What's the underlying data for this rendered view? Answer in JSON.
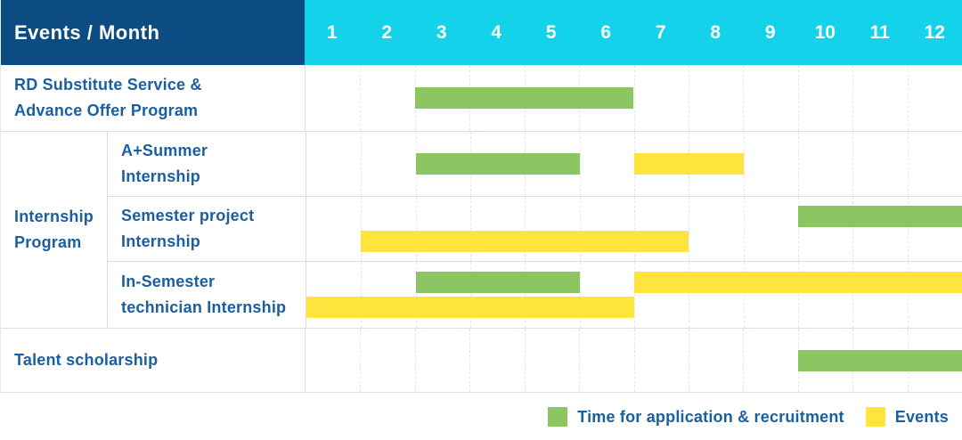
{
  "header": {
    "events_month_label": "Events / Month",
    "months": [
      "1",
      "2",
      "3",
      "4",
      "5",
      "6",
      "7",
      "8",
      "9",
      "10",
      "11",
      "12"
    ]
  },
  "colors": {
    "navy": "#0C4C82",
    "cyan": "#14D2E9",
    "green": "#8CC663",
    "yellow": "#FFE43D",
    "label_text": "#1B5FA0"
  },
  "rows": [
    {
      "label": "RD Substitute Service &\nAdvance Offer Program",
      "bars": [
        {
          "color": "green",
          "start": 3,
          "end": 6,
          "line": "center"
        }
      ]
    },
    {
      "label": "Internship\nProgram",
      "children": [
        {
          "label": "A+Summer\nInternship",
          "bars": [
            {
              "color": "green",
              "start": 3,
              "end": 5,
              "line": "center"
            },
            {
              "color": "yellow",
              "start": 7,
              "end": 8,
              "line": "center"
            }
          ]
        },
        {
          "label": "Semester project\nInternship",
          "bars": [
            {
              "color": "green",
              "start": 10,
              "end": 12,
              "line": "top"
            },
            {
              "color": "yellow",
              "start": 2,
              "end": 7,
              "line": "bottom"
            }
          ]
        },
        {
          "label": "In-Semester\ntechnician Internship",
          "bars": [
            {
              "color": "green",
              "start": 3,
              "end": 5,
              "line": "top"
            },
            {
              "color": "yellow",
              "start": 7,
              "end": 12,
              "line": "top"
            },
            {
              "color": "yellow",
              "start": 1,
              "end": 6,
              "line": "bottom"
            }
          ]
        }
      ]
    },
    {
      "label": "Talent scholarship",
      "bars": [
        {
          "color": "green",
          "start": 10,
          "end": 12,
          "line": "center"
        }
      ]
    }
  ],
  "legend": [
    {
      "color": "green",
      "label": "Time for application & recruitment"
    },
    {
      "color": "yellow",
      "label": "Events"
    }
  ],
  "chart_data": {
    "type": "gantt",
    "title": "Events / Month",
    "x_axis": {
      "label": "Month",
      "ticks": [
        1,
        2,
        3,
        4,
        5,
        6,
        7,
        8,
        9,
        10,
        11,
        12
      ]
    },
    "categories": [
      "RD Substitute Service & Advance Offer Program",
      "A+Summer Internship",
      "Semester project Internship",
      "In-Semester technician Internship",
      "Talent scholarship"
    ],
    "groups": [
      {
        "name": "Internship Program",
        "rows": [
          "A+Summer Internship",
          "Semester project Internship",
          "In-Semester technician Internship"
        ]
      }
    ],
    "series": [
      {
        "name": "Time for application & recruitment",
        "color": "#8CC663",
        "spans": [
          {
            "row": "RD Substitute Service & Advance Offer Program",
            "start_month": 3,
            "end_month": 6
          },
          {
            "row": "A+Summer Internship",
            "start_month": 3,
            "end_month": 5
          },
          {
            "row": "Semester project Internship",
            "start_month": 10,
            "end_month": 12
          },
          {
            "row": "In-Semester technician Internship",
            "start_month": 3,
            "end_month": 5
          },
          {
            "row": "Talent scholarship",
            "start_month": 10,
            "end_month": 12
          }
        ]
      },
      {
        "name": "Events",
        "color": "#FFE43D",
        "spans": [
          {
            "row": "A+Summer Internship",
            "start_month": 7,
            "end_month": 8
          },
          {
            "row": "Semester project Internship",
            "start_month": 2,
            "end_month": 7
          },
          {
            "row": "In-Semester technician Internship",
            "start_month": 7,
            "end_month": 12
          },
          {
            "row": "In-Semester technician Internship",
            "start_month": 1,
            "end_month": 6
          }
        ]
      }
    ],
    "legend_position": "bottom-right"
  }
}
